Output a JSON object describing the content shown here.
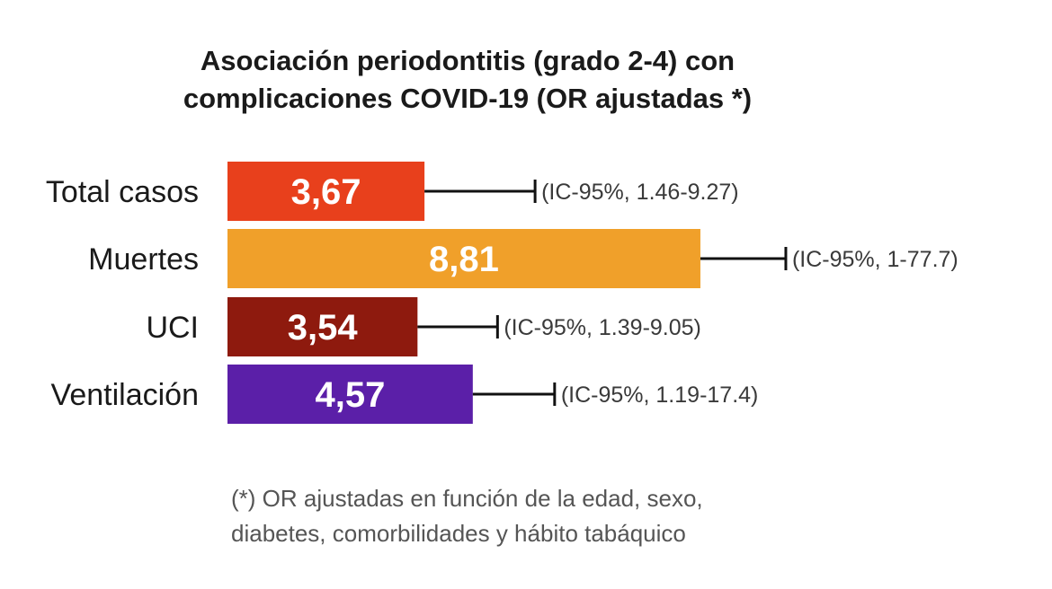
{
  "chart_data": {
    "type": "bar",
    "orientation": "horizontal",
    "title_lines": [
      "Asociación periodontitis (grado 2-4) con",
      "complicaciones COVID-19 (OR ajustadas *)"
    ],
    "categories": [
      "Total casos",
      "Muertes",
      "UCI",
      "Ventilación"
    ],
    "values": [
      3.67,
      8.81,
      3.54,
      4.57
    ],
    "value_labels": [
      "3,67",
      "8,81",
      "3,54",
      "4,57"
    ],
    "ci_labels": [
      "(IC-95%, 1.46-9.27)",
      "(IC-95%, 1-77.7)",
      "(IC-95%, 1.39-9.05)",
      "(IC-95%, 1.19-17.4)"
    ],
    "colors": [
      "#e8401c",
      "#f0a02a",
      "#8e1a0e",
      "#5b1fa8"
    ],
    "footnote_lines": [
      "(*) OR ajustadas  en función de la edad, sexo,",
      "diabetes, comorbilidades y hábito tabáquico"
    ],
    "xlim": [
      0,
      10
    ],
    "grid": false,
    "legend": "none"
  }
}
